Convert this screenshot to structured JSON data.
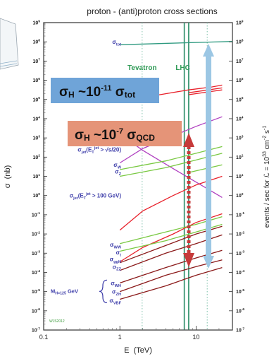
{
  "chart_data": {
    "type": "line",
    "title": "proton - (anti)proton cross sections",
    "xlabel": "E  (TeV)",
    "ylabel_left": "σ  (nb)",
    "ylabel_right": "events / sec for ℒ = 10^33 cm^-2 s^-1",
    "xscale": "log",
    "yscale": "log",
    "xlim": [
      0.1,
      30
    ],
    "ylim_exp": [
      -7,
      9
    ],
    "x_ticks": [
      {
        "value": 0.1,
        "label": "0.1"
      },
      {
        "value": 1,
        "label": "1"
      },
      {
        "value": 10,
        "label": "10"
      }
    ],
    "y_ticks_left": [
      {
        "exp": 9,
        "label": "10^9"
      },
      {
        "exp": 8,
        "label": "10^8"
      },
      {
        "exp": 7,
        "label": "10^7"
      },
      {
        "exp": 6,
        "label": "10^6"
      },
      {
        "exp": 5,
        "label": "10^5"
      },
      {
        "exp": 4,
        "label": "10^4"
      },
      {
        "exp": 3,
        "label": "10^3"
      },
      {
        "exp": 2,
        "label": "10^2"
      },
      {
        "exp": 1,
        "label": "10^1"
      },
      {
        "exp": 0,
        "label": "10^0"
      },
      {
        "exp": -1,
        "label": "10^-1"
      },
      {
        "exp": -2,
        "label": "10^-2"
      },
      {
        "exp": -3,
        "label": "10^-3"
      },
      {
        "exp": -4,
        "label": "10^-4"
      },
      {
        "exp": -5,
        "label": "10^-5"
      },
      {
        "exp": -6,
        "label": "10^-6"
      },
      {
        "exp": -7,
        "label": "10^-7"
      }
    ],
    "y_ticks_right": [
      {
        "exp": 9,
        "label": "10^9"
      },
      {
        "exp": 8,
        "label": "10^8"
      },
      {
        "exp": 7,
        "label": "10^7"
      },
      {
        "exp": 6,
        "label": "10^6"
      },
      {
        "exp": 5,
        "label": "10^5"
      },
      {
        "exp": 4,
        "label": "10^4"
      },
      {
        "exp": 3,
        "label": "10^3"
      },
      {
        "exp": 2,
        "label": "10^2"
      },
      {
        "exp": 1,
        "label": "10^1"
      },
      {
        "exp": 0,
        "label": "10^0"
      },
      {
        "exp": -1,
        "label": "10^-1"
      },
      {
        "exp": -2,
        "label": "10^-2"
      },
      {
        "exp": -3,
        "label": "10^-3"
      },
      {
        "exp": -4,
        "label": "10^-4"
      },
      {
        "exp": -5,
        "label": "10^-5"
      },
      {
        "exp": -6,
        "label": "10^-6"
      },
      {
        "exp": -7,
        "label": "10^-7"
      }
    ],
    "vlines": [
      {
        "label": "Tevatron",
        "x": 1.96,
        "color": "#7bbfa8",
        "style": "dotted"
      },
      {
        "label": "LHC",
        "x": 7,
        "color": "#2e8f6a",
        "style": "solid"
      },
      {
        "label": "",
        "x": 8,
        "color": "#2e8f6a",
        "style": "solid"
      },
      {
        "label": "",
        "x": 14,
        "color": "#7bbfa8",
        "style": "dotted"
      }
    ],
    "series_labels": [
      {
        "text": "σ_tot",
        "y_exp": 8.0
      },
      {
        "text": "σ_b",
        "y_exp": 5.15
      },
      {
        "text": "σ_jet(E_T^jet > √s/20)",
        "y_exp": 2.4
      },
      {
        "text": "σ_W",
        "y_exp": 1.6
      },
      {
        "text": "σ_Z",
        "y_exp": 1.25
      },
      {
        "text": "σ_jet(E_T^jet > 100 GeV)",
        "y_exp": 0.0
      },
      {
        "text": "σ_WW",
        "y_exp": -2.55
      },
      {
        "text": "σ_t",
        "y_exp": -2.95
      },
      {
        "text": "σ_ggH",
        "y_exp": -3.3
      },
      {
        "text": "σ_ZZ",
        "y_exp": -3.7
      },
      {
        "text": "σ_WH",
        "y_exp": -4.55
      },
      {
        "text": "σ_ZH",
        "y_exp": -5.0
      },
      {
        "text": "σ_VBF",
        "y_exp": -5.45
      }
    ],
    "higgs_mass_label": "M_H=125 GeV",
    "credit": "WJS2012",
    "series": [
      {
        "color": "#2f9a80",
        "points": [
          [
            1,
            7.85
          ],
          [
            30,
            8.02
          ]
        ]
      },
      {
        "color": "#e8202a",
        "points": [
          [
            1,
            4.9
          ],
          [
            2,
            5.1
          ],
          [
            4,
            5.3
          ],
          [
            8,
            5.5
          ],
          [
            16,
            5.65
          ],
          [
            22,
            5.75
          ]
        ]
      },
      {
        "color": "#e8202a",
        "points": [
          [
            8,
            5.35
          ],
          [
            22,
            5.6
          ]
        ]
      },
      {
        "color": "#e8202a",
        "points": [
          [
            8,
            5.25
          ],
          [
            22,
            5.5
          ]
        ]
      },
      {
        "color": "#b040c0",
        "points": [
          [
            1,
            1.7
          ],
          [
            2,
            2.45
          ],
          [
            5,
            3.1
          ],
          [
            10,
            3.6
          ],
          [
            22,
            4.1
          ]
        ]
      },
      {
        "color": "#b040c0",
        "points": [
          [
            1,
            3.2
          ],
          [
            2,
            2.35
          ],
          [
            5,
            1.4
          ],
          [
            10,
            0.7
          ],
          [
            22,
            -0.1
          ]
        ]
      },
      {
        "color": "#7ac943",
        "points": [
          [
            1,
            1.35
          ],
          [
            4,
            1.8
          ],
          [
            10,
            2.2
          ],
          [
            22,
            2.55
          ]
        ]
      },
      {
        "color": "#7ac943",
        "points": [
          [
            1,
            1.0
          ],
          [
            4,
            1.45
          ],
          [
            10,
            1.85
          ],
          [
            22,
            2.2
          ]
        ]
      },
      {
        "color": "#7ac943",
        "points": [
          [
            8,
            1.2
          ],
          [
            22,
            1.6
          ]
        ]
      },
      {
        "color": "#e8202a",
        "points": [
          [
            1,
            -1.8
          ],
          [
            2,
            -0.8
          ],
          [
            5,
            0.0
          ],
          [
            10,
            0.55
          ],
          [
            22,
            1.0
          ]
        ]
      },
      {
        "color": "#e8202a",
        "points": [
          [
            1,
            -3.45
          ],
          [
            2,
            -2.7
          ],
          [
            5,
            -2.0
          ],
          [
            10,
            -1.4
          ],
          [
            22,
            -0.95
          ]
        ]
      },
      {
        "color": "#7ac943",
        "points": [
          [
            1,
            -2.5
          ],
          [
            4,
            -1.9
          ],
          [
            10,
            -1.5
          ],
          [
            22,
            -1.1
          ]
        ]
      },
      {
        "color": "#7ac943",
        "points": [
          [
            1,
            -2.9
          ],
          [
            4,
            -2.35
          ],
          [
            10,
            -1.9
          ],
          [
            22,
            -1.5
          ]
        ]
      },
      {
        "color": "#8b1a1a",
        "points": [
          [
            1,
            -3.5
          ],
          [
            4,
            -2.6
          ],
          [
            10,
            -2.0
          ],
          [
            22,
            -1.6
          ]
        ]
      },
      {
        "color": "#8b1a1a",
        "points": [
          [
            1,
            -3.9
          ],
          [
            4,
            -3.0
          ],
          [
            10,
            -2.5
          ],
          [
            22,
            -2.05
          ]
        ]
      },
      {
        "color": "#8b1a1a",
        "points": [
          [
            1,
            -4.55
          ],
          [
            4,
            -3.75
          ],
          [
            10,
            -3.25
          ],
          [
            22,
            -2.85
          ]
        ]
      },
      {
        "color": "#8b1a1a",
        "points": [
          [
            1,
            -5.0
          ],
          [
            4,
            -4.15
          ],
          [
            10,
            -3.7
          ],
          [
            22,
            -3.35
          ]
        ]
      },
      {
        "color": "#8b1a1a",
        "points": [
          [
            1,
            -5.4
          ],
          [
            4,
            -4.7
          ],
          [
            10,
            -4.15
          ],
          [
            22,
            -3.75
          ]
        ]
      }
    ],
    "annotation_boxes": [
      {
        "text": "σH ~10^-11 σtot",
        "bg": "#6fa4d8"
      },
      {
        "text": "σH ~10^-7 σQCD",
        "bg": "#e59478"
      }
    ]
  }
}
